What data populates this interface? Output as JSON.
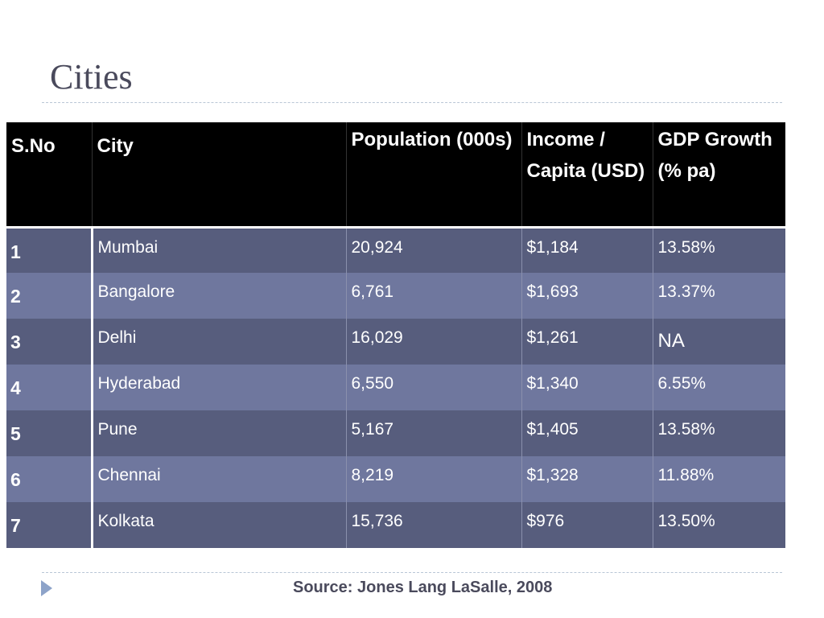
{
  "title": "Cities",
  "table": {
    "headers": [
      "S.No",
      "City",
      "Population (000s)",
      "Income / Capita (USD)",
      "GDP Growth (% pa)"
    ],
    "rows": [
      {
        "sno": "1",
        "city": "Mumbai",
        "population": "20,924",
        "income": "$1,184",
        "gdp": "13.58%"
      },
      {
        "sno": "2",
        "city": "Bangalore",
        "population": "6,761",
        "income": "$1,693",
        "gdp": "13.37%"
      },
      {
        "sno": "3",
        "city": "Delhi",
        "population": "16,029",
        "income": "$1,261",
        "gdp": "NA"
      },
      {
        "sno": "4",
        "city": "Hyderabad",
        "population": "6,550",
        "income": "$1,340",
        "gdp": "6.55%"
      },
      {
        "sno": "5",
        "city": "Pune",
        "population": "5,167",
        "income": "$1,405",
        "gdp": "13.58%"
      },
      {
        "sno": "6",
        "city": "Chennai",
        "population": "8,219",
        "income": "$1,328",
        "gdp": "11.88%"
      },
      {
        "sno": "7",
        "city": "Kolkata",
        "population": "15,736",
        "income": "$976",
        "gdp": "13.50%"
      }
    ]
  },
  "source": "Source: Jones Lang LaSalle, 2008",
  "colors": {
    "header_bg": "#000000",
    "row_dark": "#575d7d",
    "row_light": "#6f779e",
    "title_text": "#4a4a5c",
    "bullet": "#8da3c9"
  }
}
